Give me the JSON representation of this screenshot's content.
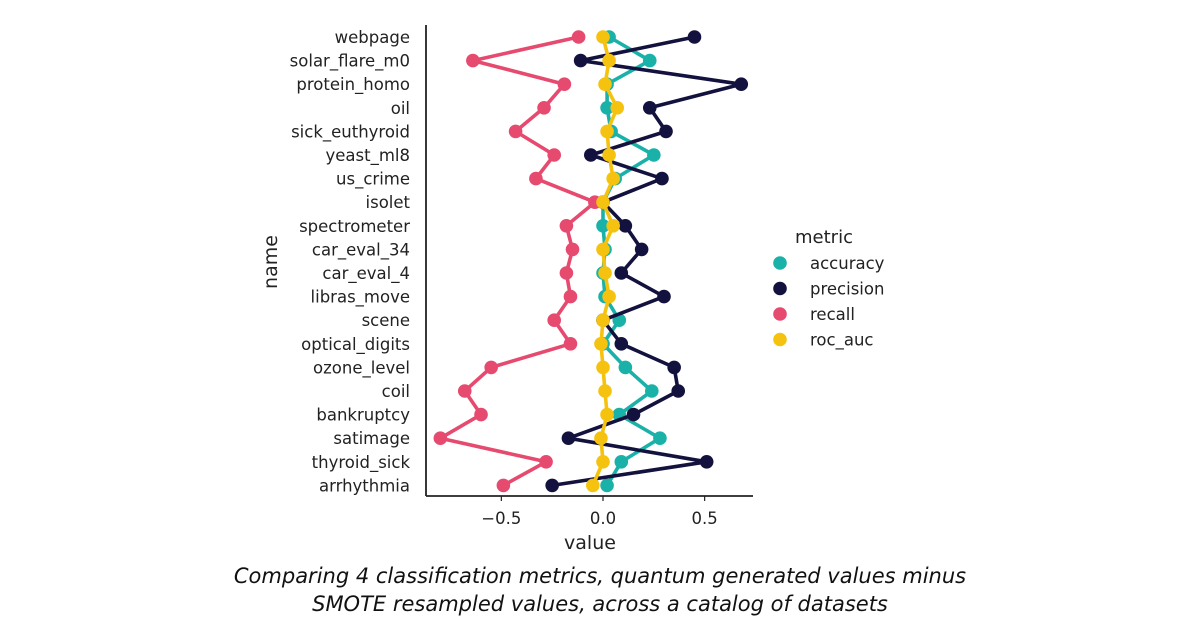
{
  "chart_data": {
    "type": "line",
    "xlabel": "value",
    "ylabel": "name",
    "xlim": [
      -0.85,
      0.75
    ],
    "xticks": [
      -0.5,
      0.0,
      0.5
    ],
    "xtick_labels": [
      "−0.5",
      "0.0",
      "0.5"
    ],
    "categories": [
      "webpage",
      "solar_flare_m0",
      "protein_homo",
      "oil",
      "sick_euthyroid",
      "yeast_ml8",
      "us_crime",
      "isolet",
      "spectrometer",
      "car_eval_34",
      "car_eval_4",
      "libras_move",
      "scene",
      "optical_digits",
      "ozone_level",
      "coil",
      "bankruptcy",
      "satimage",
      "thyroid_sick",
      "arrhythmia"
    ],
    "legend_title": "metric",
    "legend_position": "right",
    "series": [
      {
        "name": "accuracy",
        "color": "#1ab2a8",
        "values": [
          0.03,
          0.23,
          0.02,
          0.02,
          0.04,
          0.25,
          0.06,
          0.0,
          0.0,
          0.01,
          0.0,
          0.01,
          0.08,
          0.0,
          0.11,
          0.24,
          0.08,
          0.28,
          0.09,
          0.02
        ]
      },
      {
        "name": "precision",
        "color": "#13123e",
        "values": [
          0.45,
          -0.11,
          0.68,
          0.23,
          0.31,
          -0.06,
          0.29,
          0.0,
          0.11,
          0.19,
          0.09,
          0.3,
          0.0,
          0.09,
          0.35,
          0.37,
          0.15,
          -0.17,
          0.51,
          -0.25
        ]
      },
      {
        "name": "recall",
        "color": "#e64a6f",
        "values": [
          -0.12,
          -0.64,
          -0.19,
          -0.29,
          -0.43,
          -0.24,
          -0.33,
          -0.04,
          -0.18,
          -0.15,
          -0.18,
          -0.16,
          -0.24,
          -0.16,
          -0.55,
          -0.68,
          -0.6,
          -0.8,
          -0.28,
          -0.49
        ]
      },
      {
        "name": "roc_auc",
        "color": "#f5c30f",
        "values": [
          0.0,
          0.03,
          0.01,
          0.07,
          0.02,
          0.03,
          0.05,
          0.0,
          0.05,
          0.0,
          0.01,
          0.03,
          0.0,
          -0.01,
          0.0,
          0.01,
          0.02,
          -0.01,
          0.0,
          -0.05
        ]
      }
    ]
  },
  "caption": {
    "line1": "Comparing 4 classification metrics, quantum generated values minus",
    "line2": "SMOTE resampled values, across a catalog of datasets"
  }
}
